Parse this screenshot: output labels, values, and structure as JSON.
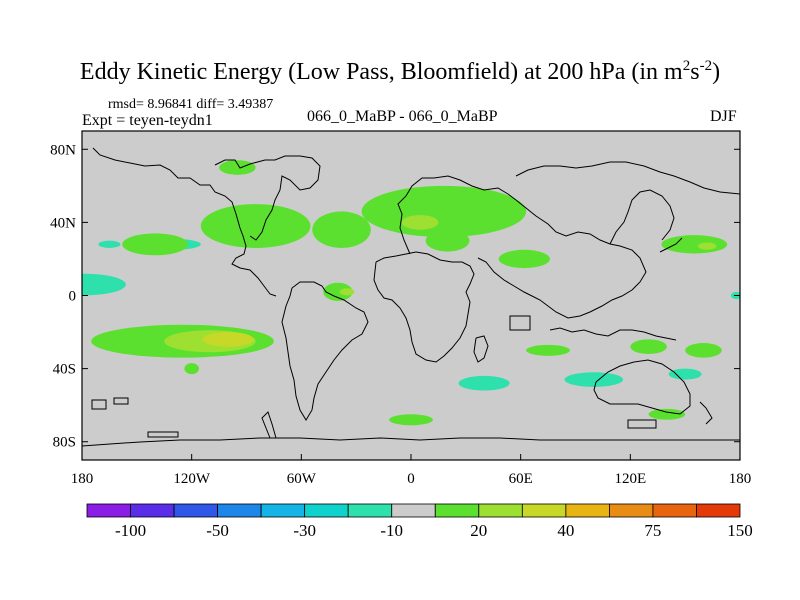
{
  "chart_data": {
    "type": "contour-map",
    "title_main": "Eddy Kinetic Energy (Low Pass, Bloomfield) at 200 hPa (in m",
    "title_sup1": "2",
    "title_mid": "s",
    "title_sup2": "-2",
    "title_end": ")",
    "stats": "rmsd= 8.96841 diff= 3.49387",
    "expt": "Expt = teyen-teydn1",
    "cases": "066_0_MaBP - 066_0_MaBP",
    "season": "DJF",
    "xlim": [
      -180,
      180
    ],
    "ylim": [
      -90,
      90
    ],
    "x_ticks": [
      {
        "value": -180,
        "label": "180"
      },
      {
        "value": -120,
        "label": "120W"
      },
      {
        "value": -60,
        "label": "60W"
      },
      {
        "value": 0,
        "label": "0"
      },
      {
        "value": 60,
        "label": "60E"
      },
      {
        "value": 120,
        "label": "120E"
      },
      {
        "value": 180,
        "label": "180"
      }
    ],
    "y_ticks": [
      {
        "value": 80,
        "label": "80N"
      },
      {
        "value": 40,
        "label": "40N"
      },
      {
        "value": 0,
        "label": "0"
      },
      {
        "value": -40,
        "label": "40S"
      },
      {
        "value": -80,
        "label": "80S"
      }
    ],
    "colorbar": {
      "colors": [
        "#8a1ee6",
        "#5a2ee8",
        "#2f58e8",
        "#1e86e8",
        "#14b4e6",
        "#10d2cc",
        "#2ee0ac",
        "#cccccc",
        "#5ce030",
        "#9ee032",
        "#c8d828",
        "#e8b414",
        "#e88c14",
        "#e8640e",
        "#e43a0a"
      ],
      "labels": [
        {
          "boundary": 1,
          "label": "-100"
        },
        {
          "boundary": 3,
          "label": "-50"
        },
        {
          "boundary": 5,
          "label": "-30"
        },
        {
          "boundary": 7,
          "label": "-10"
        },
        {
          "boundary": 9,
          "label": "20"
        },
        {
          "boundary": 11,
          "label": "40"
        },
        {
          "boundary": 13,
          "label": "75"
        },
        {
          "boundary": 15,
          "label": "150"
        }
      ]
    },
    "regions": [
      {
        "level": "-20",
        "color": "#2ee0ac",
        "lon": -180,
        "lat": 6,
        "rlon": 24,
        "rlat": 6
      },
      {
        "level": "-20",
        "color": "#2ee0ac",
        "lon": -165,
        "lat": 28,
        "rlon": 6,
        "rlat": 2
      },
      {
        "level": "-20",
        "color": "#2ee0ac",
        "lon": -130,
        "lat": 28,
        "rlon": 15,
        "rlat": 3
      },
      {
        "level": "-20",
        "color": "#2ee0ac",
        "lon": 40,
        "lat": -48,
        "rlon": 14,
        "rlat": 4
      },
      {
        "level": "-20",
        "color": "#2ee0ac",
        "lon": 100,
        "lat": -46,
        "rlon": 16,
        "rlat": 4
      },
      {
        "level": "-20",
        "color": "#2ee0ac",
        "lon": 150,
        "lat": -43,
        "rlon": 9,
        "rlat": 3
      },
      {
        "level": "-20",
        "color": "#2ee0ac",
        "lon": 157,
        "lat": 28,
        "rlon": 7,
        "rlat": 3
      },
      {
        "level": "-20",
        "color": "#2ee0ac",
        "lon": 178,
        "lat": 0,
        "rlon": 3,
        "rlat": 2
      },
      {
        "level": "10",
        "color": "#5ce030",
        "lon": -125,
        "lat": -25,
        "rlon": 50,
        "rlat": 9
      },
      {
        "level": "10",
        "color": "#5ce030",
        "lon": -140,
        "lat": 28,
        "rlon": 18,
        "rlat": 6
      },
      {
        "level": "10",
        "color": "#5ce030",
        "lon": -85,
        "lat": 38,
        "rlon": 30,
        "rlat": 12
      },
      {
        "level": "10",
        "color": "#5ce030",
        "lon": -38,
        "lat": 36,
        "rlon": 16,
        "rlat": 10
      },
      {
        "level": "10",
        "color": "#5ce030",
        "lon": 18,
        "lat": 46,
        "rlon": 45,
        "rlat": 14
      },
      {
        "level": "10",
        "color": "#5ce030",
        "lon": 20,
        "lat": 30,
        "rlon": 12,
        "rlat": 6
      },
      {
        "level": "10",
        "color": "#5ce030",
        "lon": 62,
        "lat": 20,
        "rlon": 14,
        "rlat": 5
      },
      {
        "level": "10",
        "color": "#5ce030",
        "lon": -40,
        "lat": 2,
        "rlon": 8,
        "rlat": 5
      },
      {
        "level": "10",
        "color": "#5ce030",
        "lon": -95,
        "lat": 70,
        "rlon": 10,
        "rlat": 4
      },
      {
        "level": "10",
        "color": "#5ce030",
        "lon": 155,
        "lat": 28,
        "rlon": 18,
        "rlat": 5
      },
      {
        "level": "10",
        "color": "#5ce030",
        "lon": 130,
        "lat": -28,
        "rlon": 10,
        "rlat": 4
      },
      {
        "level": "10",
        "color": "#5ce030",
        "lon": 75,
        "lat": -30,
        "rlon": 12,
        "rlat": 3
      },
      {
        "level": "10",
        "color": "#5ce030",
        "lon": 160,
        "lat": -30,
        "rlon": 10,
        "rlat": 4
      },
      {
        "level": "10",
        "color": "#5ce030",
        "lon": 140,
        "lat": -65,
        "rlon": 10,
        "rlat": 3
      },
      {
        "level": "10",
        "color": "#5ce030",
        "lon": 0,
        "lat": -68,
        "rlon": 12,
        "rlat": 3
      },
      {
        "level": "10",
        "color": "#5ce030",
        "lon": -120,
        "lat": -40,
        "rlon": 4,
        "rlat": 3
      },
      {
        "level": "30",
        "color": "#9ee032",
        "lon": -110,
        "lat": -25,
        "rlon": 25,
        "rlat": 6
      },
      {
        "level": "30",
        "color": "#9ee032",
        "lon": 5,
        "lat": 40,
        "rlon": 10,
        "rlat": 4
      },
      {
        "level": "30",
        "color": "#9ee032",
        "lon": -35,
        "lat": 2,
        "rlon": 4,
        "rlat": 2
      },
      {
        "level": "30",
        "color": "#9ee032",
        "lon": 162,
        "lat": 27,
        "rlon": 5,
        "rlat": 2
      },
      {
        "level": "40",
        "color": "#c8d828",
        "lon": -100,
        "lat": -24,
        "rlon": 14,
        "rlat": 4
      }
    ]
  }
}
